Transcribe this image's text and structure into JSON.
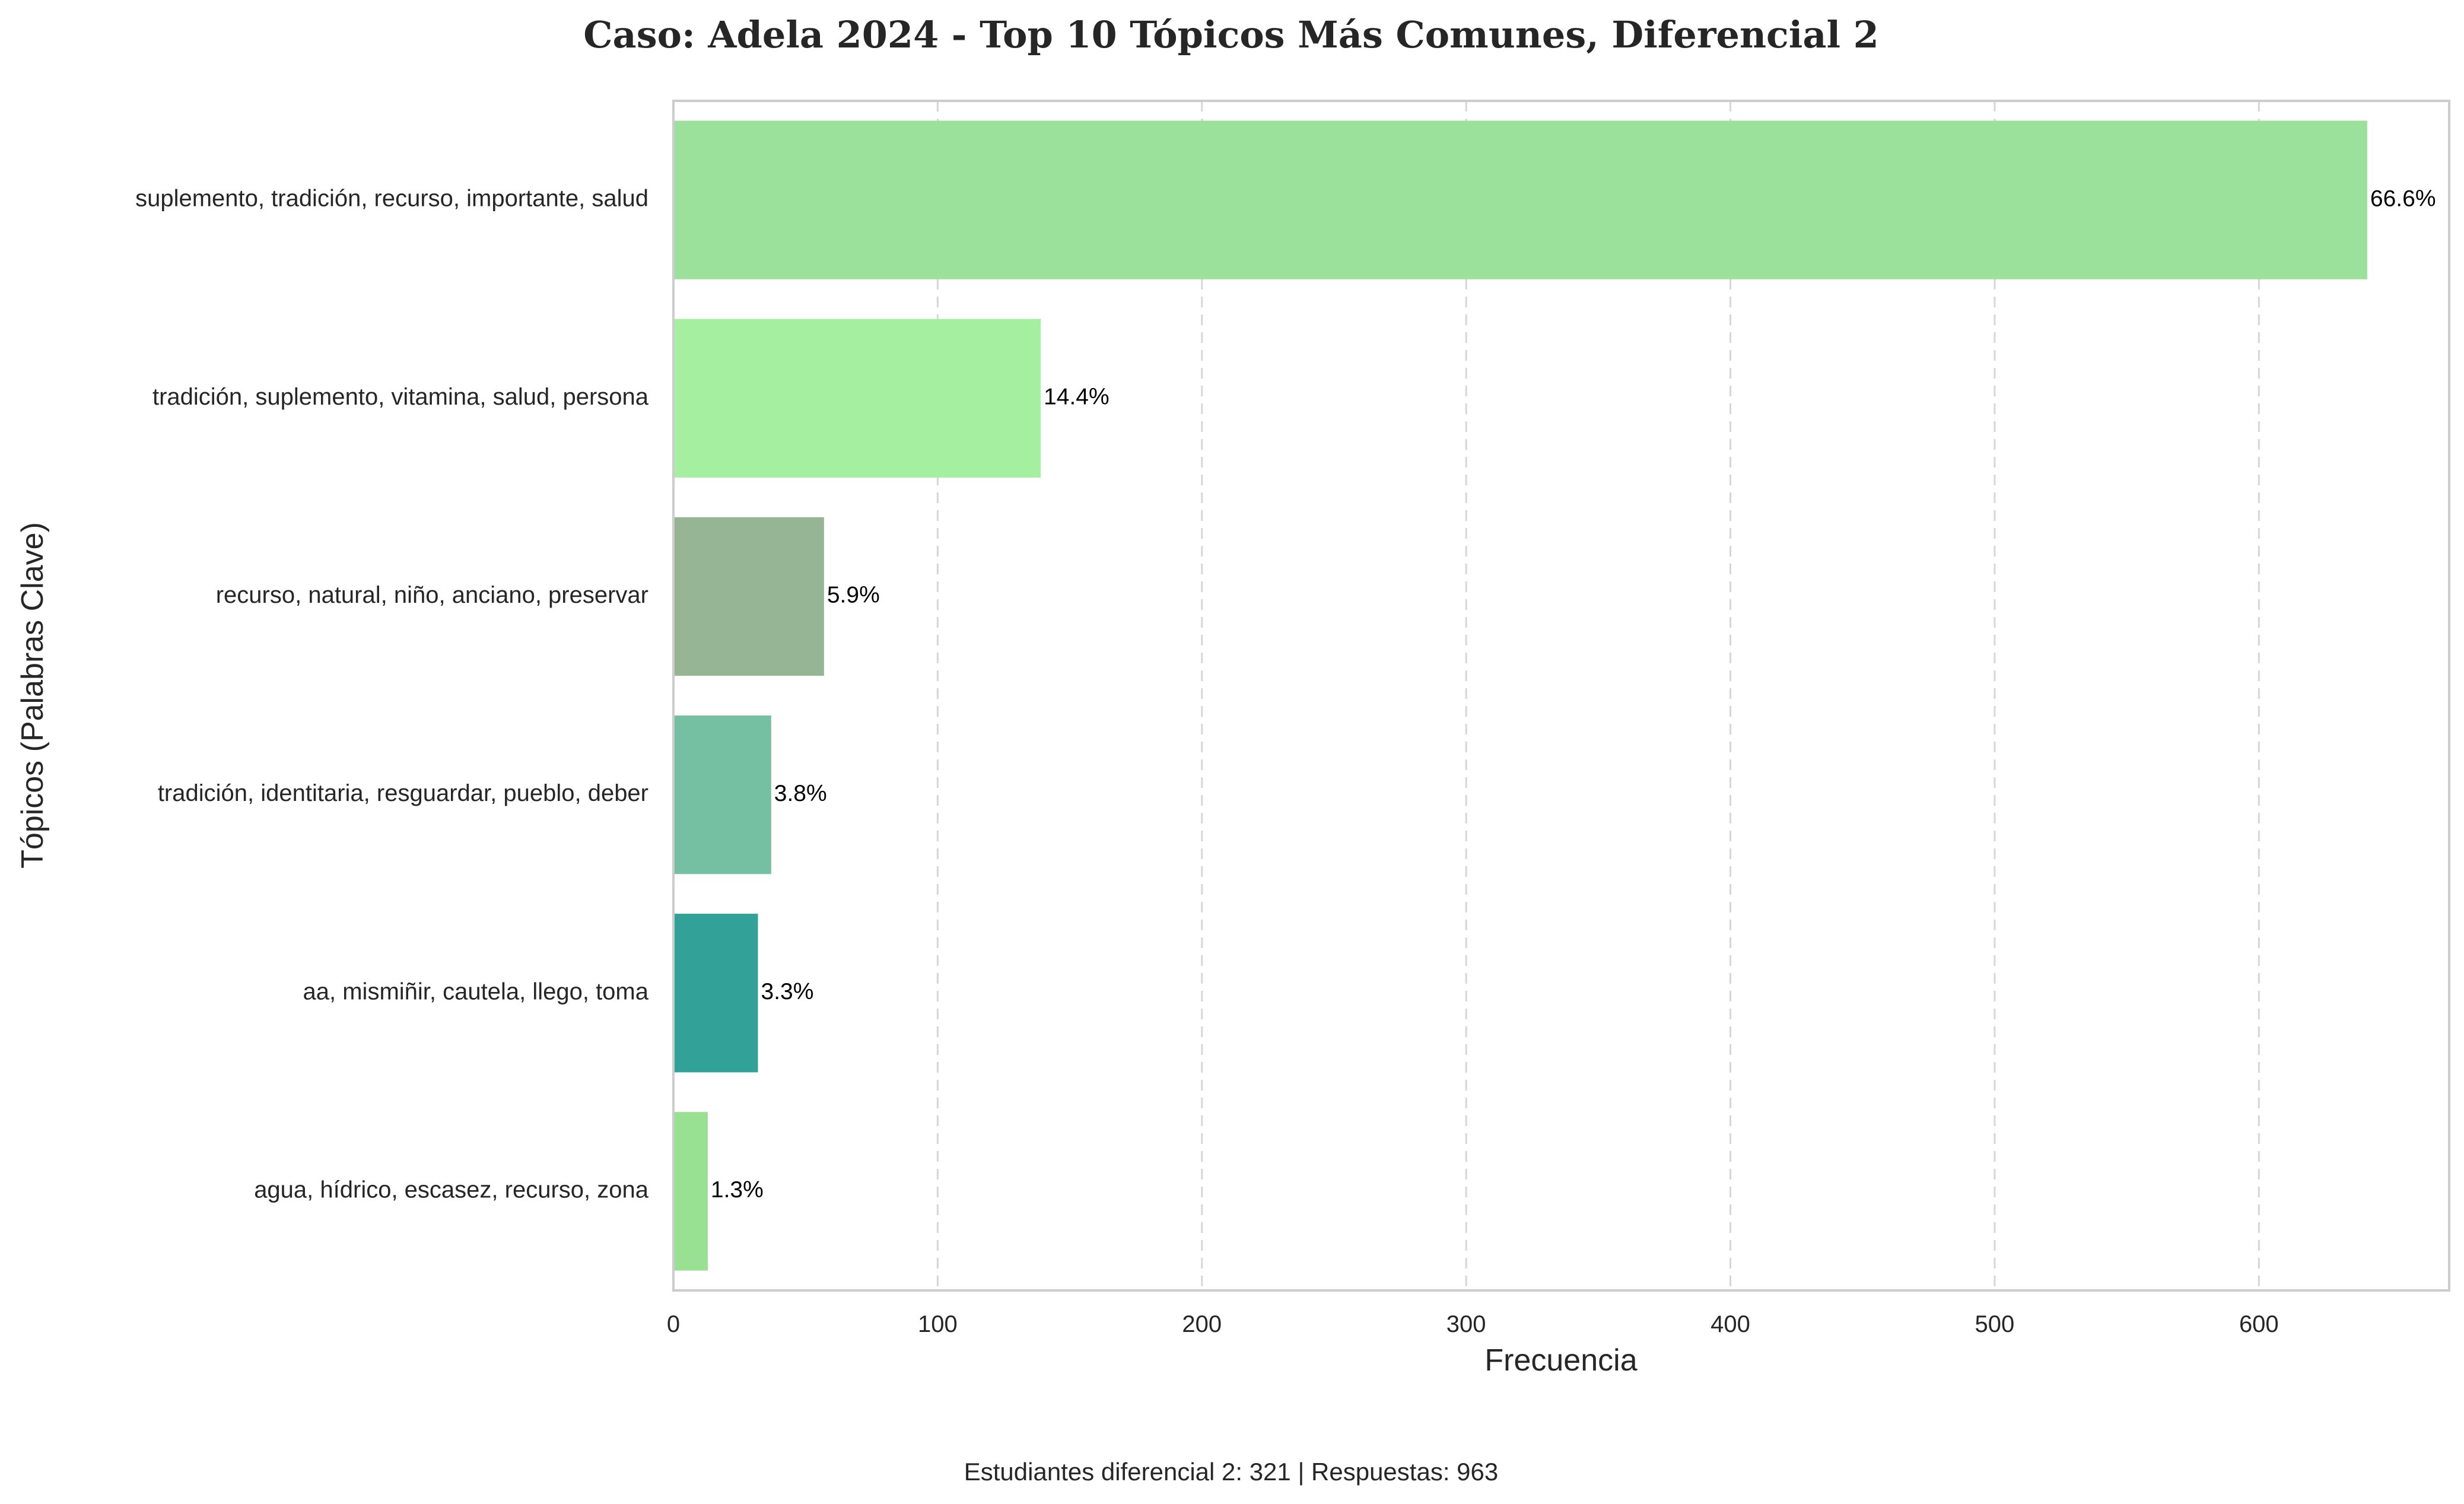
{
  "chart_data": {
    "type": "bar",
    "orientation": "horizontal",
    "title": "Caso: Adela 2024 - Top 10 Tópicos Más Comunes, Diferencial 2",
    "xlabel": "Frecuencia",
    "ylabel": "Tópicos (Palabras Clave)",
    "xlim": [
      0,
      672
    ],
    "xticks": [
      0,
      100,
      200,
      300,
      400,
      500,
      600
    ],
    "grid": "x",
    "categories": [
      "suplemento, tradición, recurso, importante, salud",
      "tradición, suplemento, vitamina, salud, persona",
      "recurso, natural, niño, anciano, preservar",
      "tradición, identitaria, resguardar, pueblo, deber",
      "aa, mismiñir, cautela, llego, toma",
      "agua, hídrico, escasez, recurso, zona"
    ],
    "values": [
      641,
      139,
      57,
      37,
      32,
      13
    ],
    "data_labels": [
      "66.6%",
      "14.4%",
      "5.9%",
      "3.8%",
      "3.3%",
      "1.3%"
    ],
    "colors": [
      "#9be09b",
      "#a4f0a0",
      "#95b594",
      "#75c0a2",
      "#32a198",
      "#98e192"
    ],
    "footnote": "Estudiantes diferencial 2: 321 | Respuestas: 963"
  }
}
